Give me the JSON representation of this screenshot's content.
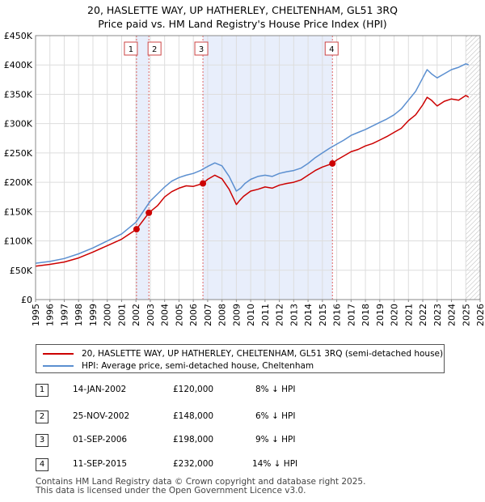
{
  "title": {
    "line1": "20, HASLETTE WAY, UP HATHERLEY, CHELTENHAM, GL51 3RQ",
    "line2": "Price paid vs. HM Land Registry's House Price Index (HPI)"
  },
  "colors": {
    "price": "#cc0000",
    "hpi": "#5b8fd0",
    "shade": "#e8eefb",
    "marker_line": "#e06666",
    "grid": "#dddddd"
  },
  "chart_data": {
    "type": "line",
    "title": "20, HASLETTE WAY, UP HATHERLEY, CHELTENHAM, GL51 3RQ — Price paid vs. HM Land Registry's House Price Index (HPI)",
    "xlim": [
      1995,
      2026
    ],
    "ylim": [
      0,
      450000
    ],
    "x_ticks": [
      "1995",
      "1996",
      "1997",
      "1998",
      "1999",
      "2000",
      "2001",
      "2002",
      "2003",
      "2004",
      "2005",
      "2006",
      "2007",
      "2008",
      "2009",
      "2010",
      "2011",
      "2012",
      "2013",
      "2014",
      "2015",
      "2016",
      "2017",
      "2018",
      "2019",
      "2020",
      "2021",
      "2022",
      "2023",
      "2024",
      "2025",
      "2026"
    ],
    "y_ticks": [
      {
        "value": 0,
        "label": "£0"
      },
      {
        "value": 50000,
        "label": "£50K"
      },
      {
        "value": 100000,
        "label": "£100K"
      },
      {
        "value": 150000,
        "label": "£150K"
      },
      {
        "value": 200000,
        "label": "£200K"
      },
      {
        "value": 250000,
        "label": "£250K"
      },
      {
        "value": 300000,
        "label": "£300K"
      },
      {
        "value": 350000,
        "label": "£350K"
      },
      {
        "value": 400000,
        "label": "£400K"
      },
      {
        "value": 450000,
        "label": "£450K"
      }
    ],
    "shaded_ranges": [
      [
        2002.04,
        2002.9
      ],
      [
        2006.67,
        2015.7
      ]
    ],
    "hatched_from": 2025.0,
    "series": [
      {
        "name": "20, HASLETTE WAY, UP HATHERLEY, CHELTENHAM, GL51 3RQ (semi-detached house)",
        "color": "#cc0000",
        "x": [
          1995.0,
          1996.0,
          1997.0,
          1998.0,
          1999.0,
          2000.0,
          2001.0,
          2002.04,
          2002.9,
          2003.5,
          2004.0,
          2004.5,
          2005.0,
          2005.5,
          2006.0,
          2006.67,
          2007.0,
          2007.5,
          2008.0,
          2008.5,
          2009.0,
          2009.2,
          2009.5,
          2010.0,
          2010.5,
          2011.0,
          2011.5,
          2012.0,
          2012.5,
          2013.0,
          2013.5,
          2014.0,
          2014.5,
          2015.0,
          2015.7,
          2016.0,
          2016.5,
          2017.0,
          2017.5,
          2018.0,
          2018.5,
          2019.0,
          2019.5,
          2020.0,
          2020.5,
          2021.0,
          2021.5,
          2022.0,
          2022.3,
          2022.6,
          2023.0,
          2023.5,
          2024.0,
          2024.5,
          2025.0,
          2025.2
        ],
        "values": [
          57000,
          60000,
          64000,
          71000,
          81000,
          92000,
          103000,
          120000,
          148000,
          160000,
          175000,
          184000,
          190000,
          194000,
          193000,
          198000,
          205000,
          212000,
          206000,
          188000,
          162000,
          168000,
          176000,
          185000,
          188000,
          192000,
          190000,
          195000,
          198000,
          200000,
          204000,
          212000,
          220000,
          226000,
          232000,
          238000,
          245000,
          252000,
          256000,
          262000,
          266000,
          272000,
          278000,
          285000,
          292000,
          305000,
          315000,
          332000,
          345000,
          340000,
          330000,
          338000,
          342000,
          340000,
          348000,
          345000
        ]
      },
      {
        "name": "HPI: Average price, semi-detached house, Cheltenham",
        "color": "#5b8fd0",
        "x": [
          1995.0,
          1996.0,
          1997.0,
          1998.0,
          1999.0,
          2000.0,
          2001.0,
          2002.0,
          2002.5,
          2003.0,
          2003.5,
          2004.0,
          2004.5,
          2005.0,
          2005.5,
          2006.0,
          2006.5,
          2007.0,
          2007.5,
          2008.0,
          2008.5,
          2009.0,
          2009.3,
          2009.6,
          2010.0,
          2010.5,
          2011.0,
          2011.5,
          2012.0,
          2012.5,
          2013.0,
          2013.5,
          2014.0,
          2014.5,
          2015.0,
          2015.5,
          2016.0,
          2016.5,
          2017.0,
          2017.5,
          2018.0,
          2018.5,
          2019.0,
          2019.5,
          2020.0,
          2020.5,
          2021.0,
          2021.5,
          2022.0,
          2022.3,
          2022.6,
          2023.0,
          2023.5,
          2024.0,
          2024.5,
          2025.0,
          2025.2
        ],
        "values": [
          62000,
          65000,
          70000,
          78000,
          88000,
          100000,
          112000,
          132000,
          150000,
          168000,
          180000,
          192000,
          202000,
          208000,
          212000,
          215000,
          220000,
          227000,
          233000,
          228000,
          210000,
          185000,
          190000,
          198000,
          205000,
          210000,
          212000,
          210000,
          215000,
          218000,
          220000,
          224000,
          232000,
          242000,
          250000,
          258000,
          265000,
          272000,
          280000,
          285000,
          290000,
          296000,
          302000,
          308000,
          315000,
          325000,
          340000,
          355000,
          378000,
          392000,
          385000,
          378000,
          385000,
          392000,
          396000,
          402000,
          400000
        ]
      }
    ],
    "sales": [
      {
        "n": "1",
        "x": 2002.04,
        "value": 120000
      },
      {
        "n": "2",
        "x": 2002.9,
        "value": 148000
      },
      {
        "n": "3",
        "x": 2006.67,
        "value": 198000
      },
      {
        "n": "4",
        "x": 2015.7,
        "value": 232000
      }
    ]
  },
  "legend": {
    "price_label": "20, HASLETTE WAY, UP HATHERLEY, CHELTENHAM, GL51 3RQ (semi-detached house)",
    "hpi_label": "HPI: Average price, semi-detached house, Cheltenham"
  },
  "sales_table": [
    {
      "n": "1",
      "date": "14-JAN-2002",
      "price": "£120,000",
      "hpi": "8% ↓ HPI"
    },
    {
      "n": "2",
      "date": "25-NOV-2002",
      "price": "£148,000",
      "hpi": "6% ↓ HPI"
    },
    {
      "n": "3",
      "date": "01-SEP-2006",
      "price": "£198,000",
      "hpi": "9% ↓ HPI"
    },
    {
      "n": "4",
      "date": "11-SEP-2015",
      "price": "£232,000",
      "hpi": "14% ↓ HPI"
    }
  ],
  "footer": {
    "line1": "Contains HM Land Registry data © Crown copyright and database right 2025.",
    "line2": "This data is licensed under the Open Government Licence v3.0."
  }
}
